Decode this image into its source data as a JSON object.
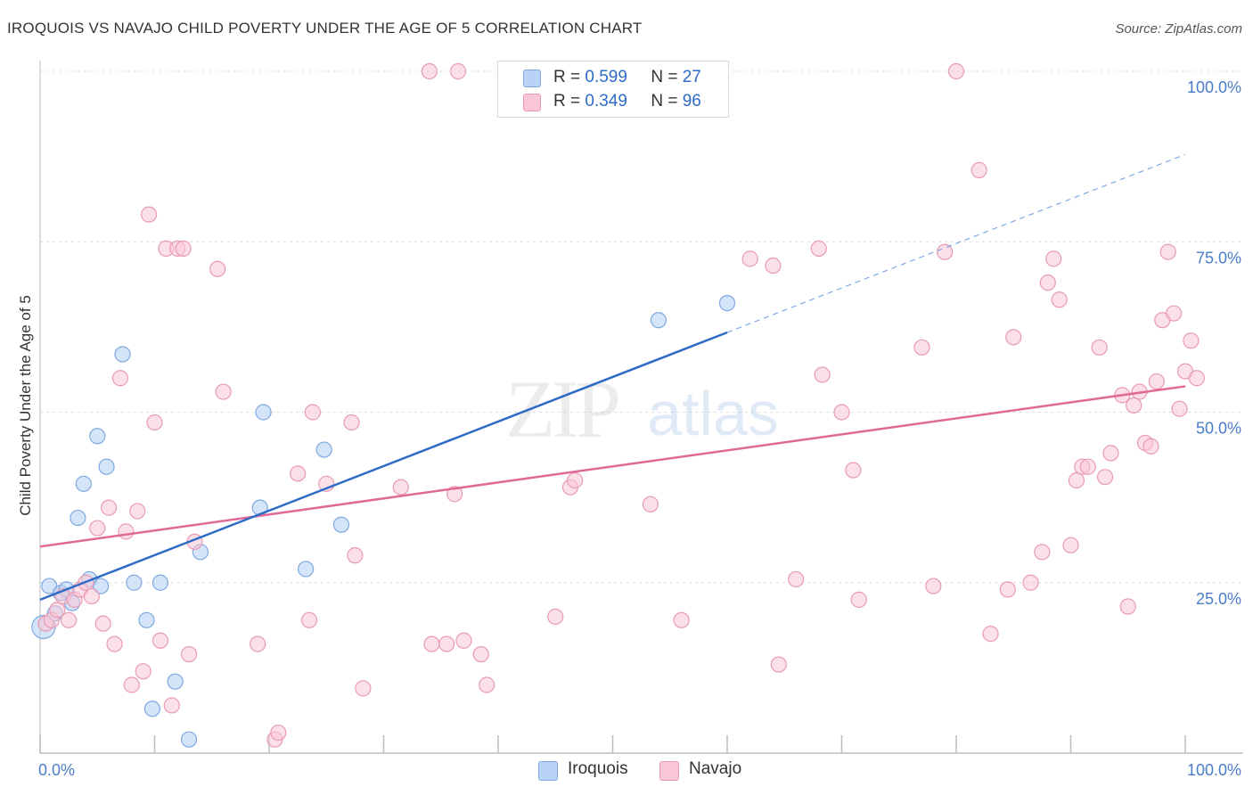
{
  "header": {
    "title": "IROQUOIS VS NAVAJO CHILD POVERTY UNDER THE AGE OF 5 CORRELATION CHART",
    "source": "Source: ZipAtlas.com"
  },
  "legend": {
    "iroquois": {
      "r_label": "R =",
      "r_value": "0.599",
      "n_label": "N =",
      "n_value": "27"
    },
    "navajo": {
      "r_label": "R =",
      "r_value": "0.349",
      "n_label": "N =",
      "n_value": "96"
    }
  },
  "bottom_legend": {
    "iroquois": "Iroquois",
    "navajo": "Navajo"
  },
  "watermark": {
    "zip": "ZIP",
    "atlas": "atlas"
  },
  "colors": {
    "iroquois_fill": "#b8d3f5",
    "iroquois_stroke": "#7fa8e0",
    "iroquois_line": "#2e6bc6",
    "navajo_fill": "#f9c6d6",
    "navajo_stroke": "#e89ab4",
    "navajo_line": "#e06a97",
    "grid": "#dcdcdc",
    "tick_text": "#4a7cc9"
  },
  "chart_data": {
    "type": "scatter",
    "title": "IROQUOIS VS NAVAJO CHILD POVERTY UNDER THE AGE OF 5 CORRELATION CHART",
    "xlabel": "",
    "ylabel": "Child Poverty Under the Age of 5",
    "xlim": [
      0,
      100
    ],
    "ylim": [
      0,
      100
    ],
    "x_tick_labels": [
      "0.0%",
      "100.0%"
    ],
    "y_ticks": [
      25,
      50,
      75,
      100
    ],
    "y_tick_labels": [
      "25.0%",
      "50.0%",
      "75.0%",
      "100.0%"
    ],
    "grid": true,
    "legend_position": "top-center",
    "series": [
      {
        "name": "Iroquois",
        "R": 0.599,
        "N": 27,
        "trend": {
          "x0": 0,
          "y0": 22.5,
          "x1": 60,
          "y1": 61.7,
          "dashed_to_x": 100,
          "dashed_to_y": 87.8
        },
        "points": [
          [
            0.3,
            18.5
          ],
          [
            0.8,
            24.5
          ],
          [
            1.3,
            20.5
          ],
          [
            1.8,
            23.5
          ],
          [
            2.3,
            24
          ],
          [
            2.8,
            22
          ],
          [
            3.3,
            34.5
          ],
          [
            3.8,
            39.5
          ],
          [
            4.3,
            25.5
          ],
          [
            5.0,
            46.5
          ],
          [
            5.3,
            24.5
          ],
          [
            5.8,
            42
          ],
          [
            7.2,
            58.5
          ],
          [
            8.2,
            25
          ],
          [
            9.3,
            19.5
          ],
          [
            9.8,
            6.5
          ],
          [
            10.5,
            25
          ],
          [
            11.8,
            10.5
          ],
          [
            13.0,
            2
          ],
          [
            14.0,
            29.5
          ],
          [
            19.2,
            36
          ],
          [
            19.5,
            50
          ],
          [
            23.2,
            27
          ],
          [
            24.8,
            44.5
          ],
          [
            26.3,
            33.5
          ],
          [
            54.0,
            63.5
          ],
          [
            60.0,
            66
          ]
        ]
      },
      {
        "name": "Navajo",
        "R": 0.349,
        "N": 96,
        "trend": {
          "x0": 0,
          "y0": 30.3,
          "x1": 100,
          "y1": 53.8
        },
        "points": [
          [
            0.5,
            19
          ],
          [
            1.0,
            19.5
          ],
          [
            1.5,
            21
          ],
          [
            2.0,
            23
          ],
          [
            2.5,
            19.5
          ],
          [
            3.0,
            22.5
          ],
          [
            3.5,
            24
          ],
          [
            4.0,
            25
          ],
          [
            4.5,
            23
          ],
          [
            5.0,
            33
          ],
          [
            5.5,
            19
          ],
          [
            6.0,
            36
          ],
          [
            6.5,
            16
          ],
          [
            7.0,
            55
          ],
          [
            7.5,
            32.5
          ],
          [
            8.0,
            10
          ],
          [
            8.5,
            35.5
          ],
          [
            9.0,
            12
          ],
          [
            9.5,
            79
          ],
          [
            10.0,
            48.5
          ],
          [
            10.5,
            16.5
          ],
          [
            11.0,
            74
          ],
          [
            11.5,
            7
          ],
          [
            12.0,
            74
          ],
          [
            12.5,
            74
          ],
          [
            13.0,
            14.5
          ],
          [
            13.5,
            31
          ],
          [
            15.5,
            71
          ],
          [
            16.0,
            53
          ],
          [
            19.0,
            16
          ],
          [
            20.5,
            2
          ],
          [
            20.8,
            3
          ],
          [
            22.5,
            41
          ],
          [
            23.5,
            19.5
          ],
          [
            23.8,
            50
          ],
          [
            25.0,
            39.5
          ],
          [
            27.2,
            48.5
          ],
          [
            27.5,
            29
          ],
          [
            28.2,
            9.5
          ],
          [
            31.5,
            39
          ],
          [
            34.0,
            100
          ],
          [
            34.2,
            16
          ],
          [
            35.5,
            16
          ],
          [
            36.2,
            38
          ],
          [
            36.5,
            100
          ],
          [
            37.0,
            16.5
          ],
          [
            38.5,
            14.5
          ],
          [
            39.0,
            10
          ],
          [
            45.0,
            20
          ],
          [
            46.3,
            39
          ],
          [
            46.7,
            40
          ],
          [
            53.3,
            36.5
          ],
          [
            56.0,
            19.5
          ],
          [
            62.0,
            72.5
          ],
          [
            64.0,
            71.5
          ],
          [
            64.5,
            13
          ],
          [
            66.0,
            25.5
          ],
          [
            68.0,
            74
          ],
          [
            68.3,
            55.5
          ],
          [
            70.0,
            50
          ],
          [
            71.0,
            41.5
          ],
          [
            71.5,
            22.5
          ],
          [
            77.0,
            59.5
          ],
          [
            78.0,
            24.5
          ],
          [
            79.0,
            73.5
          ],
          [
            80.0,
            100
          ],
          [
            82.0,
            85.5
          ],
          [
            83.0,
            17.5
          ],
          [
            84.5,
            24
          ],
          [
            85.0,
            61
          ],
          [
            86.5,
            25
          ],
          [
            87.5,
            29.5
          ],
          [
            88.0,
            69
          ],
          [
            88.5,
            72.5
          ],
          [
            89.0,
            66.5
          ],
          [
            90.0,
            30.5
          ],
          [
            90.5,
            40
          ],
          [
            91.0,
            42
          ],
          [
            91.5,
            42
          ],
          [
            92.5,
            59.5
          ],
          [
            93.0,
            40.5
          ],
          [
            93.5,
            44
          ],
          [
            94.5,
            52.5
          ],
          [
            95.0,
            21.5
          ],
          [
            95.5,
            51
          ],
          [
            96.0,
            53
          ],
          [
            96.5,
            45.5
          ],
          [
            97.0,
            45
          ],
          [
            97.5,
            54.5
          ],
          [
            98.0,
            63.5
          ],
          [
            98.5,
            73.5
          ],
          [
            99.0,
            64.5
          ],
          [
            99.5,
            50.5
          ],
          [
            100.0,
            56
          ],
          [
            100.5,
            60.5
          ],
          [
            101.0,
            55
          ]
        ]
      }
    ]
  }
}
